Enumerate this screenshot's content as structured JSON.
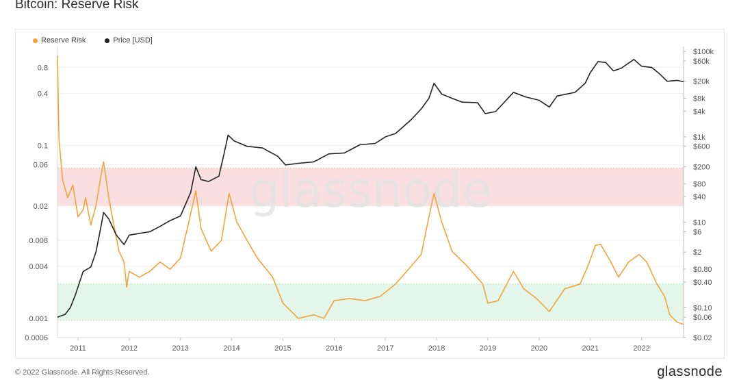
{
  "page_title": "Bitcoin: Reserve Risk",
  "footer": {
    "copyright": "© 2022 Glassnode. All Rights Reserved.",
    "brand": "glassnode"
  },
  "colors": {
    "reserve_risk": "#f2a33a",
    "price": "#222222",
    "red_band": "#f9d9da",
    "green_band": "#dff5e6",
    "watermark": "#e3e3e3"
  },
  "watermark": "glassnode",
  "chart_data": {
    "type": "line",
    "title": "Bitcoin: Reserve Risk",
    "legend": [
      "Reserve Risk",
      "Price [USD]"
    ],
    "legend_position": "top-left",
    "x_ticks": [
      "2011",
      "2012",
      "2013",
      "2014",
      "2015",
      "2016",
      "2017",
      "2018",
      "2019",
      "2020",
      "2021",
      "2022"
    ],
    "x_range": [
      2010.6,
      2022.82
    ],
    "left_axis": {
      "scale": "log",
      "range": [
        0.0006,
        1.4
      ],
      "ticks": [
        0.0006,
        0.001,
        0.004,
        0.008,
        0.02,
        0.06,
        0.1,
        0.4,
        0.8
      ],
      "labels": [
        "0.0006",
        "0.001",
        "0.004",
        "0.008",
        "0.02",
        "0.06",
        "0.1",
        "0.4",
        "0.8"
      ]
    },
    "right_axis": {
      "scale": "log",
      "range": [
        0.02,
        130000
      ],
      "ticks": [
        0.02,
        0.06,
        0.1,
        0.4,
        0.8,
        2,
        6,
        10,
        40,
        80,
        200,
        600,
        1000,
        4000,
        8000,
        20000,
        60000,
        100000
      ],
      "labels": [
        "$0.02",
        "$0.06",
        "$0.10",
        "$0.40",
        "$0.80",
        "$2",
        "$6",
        "$10",
        "$40",
        "$80",
        "$200",
        "$600",
        "$1k",
        "$4k",
        "$8k",
        "$20k",
        "$60k",
        "$100k"
      ]
    },
    "bands": [
      {
        "zone": "red",
        "from": 0.02,
        "to": 0.055
      },
      {
        "zone": "green",
        "from": 0.00095,
        "to": 0.0025
      }
    ],
    "grid": true,
    "series": [
      {
        "name": "Reserve Risk",
        "axis": "left",
        "points": [
          [
            2010.6,
            1.1
          ],
          [
            2010.63,
            0.12
          ],
          [
            2010.7,
            0.04
          ],
          [
            2010.8,
            0.025
          ],
          [
            2010.9,
            0.035
          ],
          [
            2011.0,
            0.015
          ],
          [
            2011.1,
            0.018
          ],
          [
            2011.15,
            0.025
          ],
          [
            2011.25,
            0.012
          ],
          [
            2011.35,
            0.02
          ],
          [
            2011.45,
            0.045
          ],
          [
            2011.5,
            0.065
          ],
          [
            2011.6,
            0.025
          ],
          [
            2011.7,
            0.012
          ],
          [
            2011.8,
            0.006
          ],
          [
            2011.9,
            0.0045
          ],
          [
            2011.95,
            0.0023
          ],
          [
            2012.0,
            0.0035
          ],
          [
            2012.2,
            0.003
          ],
          [
            2012.4,
            0.0035
          ],
          [
            2012.6,
            0.0045
          ],
          [
            2012.8,
            0.0037
          ],
          [
            2013.0,
            0.005
          ],
          [
            2013.15,
            0.012
          ],
          [
            2013.3,
            0.03
          ],
          [
            2013.4,
            0.011
          ],
          [
            2013.6,
            0.006
          ],
          [
            2013.8,
            0.008
          ],
          [
            2013.95,
            0.028
          ],
          [
            2014.1,
            0.013
          ],
          [
            2014.3,
            0.008
          ],
          [
            2014.5,
            0.005
          ],
          [
            2014.8,
            0.003
          ],
          [
            2015.0,
            0.0015
          ],
          [
            2015.3,
            0.001
          ],
          [
            2015.6,
            0.0011
          ],
          [
            2015.8,
            0.001
          ],
          [
            2016.0,
            0.0016
          ],
          [
            2016.3,
            0.0017
          ],
          [
            2016.6,
            0.0016
          ],
          [
            2016.9,
            0.0018
          ],
          [
            2017.2,
            0.0025
          ],
          [
            2017.5,
            0.004
          ],
          [
            2017.7,
            0.0055
          ],
          [
            2017.85,
            0.015
          ],
          [
            2017.95,
            0.028
          ],
          [
            2018.1,
            0.013
          ],
          [
            2018.3,
            0.006
          ],
          [
            2018.6,
            0.004
          ],
          [
            2018.9,
            0.0025
          ],
          [
            2019.0,
            0.0015
          ],
          [
            2019.2,
            0.0016
          ],
          [
            2019.5,
            0.0035
          ],
          [
            2019.7,
            0.0022
          ],
          [
            2019.95,
            0.0017
          ],
          [
            2020.2,
            0.0012
          ],
          [
            2020.5,
            0.0022
          ],
          [
            2020.8,
            0.0025
          ],
          [
            2020.95,
            0.004
          ],
          [
            2021.1,
            0.007
          ],
          [
            2021.2,
            0.0072
          ],
          [
            2021.4,
            0.0045
          ],
          [
            2021.55,
            0.003
          ],
          [
            2021.75,
            0.0045
          ],
          [
            2021.95,
            0.0055
          ],
          [
            2022.1,
            0.0045
          ],
          [
            2022.3,
            0.0025
          ],
          [
            2022.45,
            0.0018
          ],
          [
            2022.55,
            0.0011
          ],
          [
            2022.7,
            0.0009
          ],
          [
            2022.82,
            0.00085
          ]
        ]
      },
      {
        "name": "Price [USD]",
        "axis": "right",
        "points": [
          [
            2010.6,
            0.06
          ],
          [
            2010.75,
            0.07
          ],
          [
            2010.85,
            0.1
          ],
          [
            2010.95,
            0.2
          ],
          [
            2011.1,
            0.7
          ],
          [
            2011.25,
            0.9
          ],
          [
            2011.35,
            2
          ],
          [
            2011.45,
            8
          ],
          [
            2011.5,
            17
          ],
          [
            2011.6,
            12
          ],
          [
            2011.75,
            5
          ],
          [
            2011.9,
            3
          ],
          [
            2012.0,
            5
          ],
          [
            2012.2,
            5.5
          ],
          [
            2012.4,
            6
          ],
          [
            2012.6,
            8
          ],
          [
            2012.8,
            11
          ],
          [
            2013.0,
            14
          ],
          [
            2013.2,
            50
          ],
          [
            2013.3,
            200
          ],
          [
            2013.4,
            100
          ],
          [
            2013.55,
            90
          ],
          [
            2013.75,
            120
          ],
          [
            2013.85,
            400
          ],
          [
            2013.93,
            1100
          ],
          [
            2014.05,
            800
          ],
          [
            2014.3,
            600
          ],
          [
            2014.6,
            550
          ],
          [
            2014.9,
            350
          ],
          [
            2015.05,
            220
          ],
          [
            2015.3,
            240
          ],
          [
            2015.6,
            260
          ],
          [
            2015.9,
            400
          ],
          [
            2016.2,
            420
          ],
          [
            2016.5,
            650
          ],
          [
            2016.8,
            700
          ],
          [
            2017.0,
            1000
          ],
          [
            2017.2,
            1200
          ],
          [
            2017.5,
            2500
          ],
          [
            2017.7,
            4500
          ],
          [
            2017.85,
            8000
          ],
          [
            2017.95,
            18000
          ],
          [
            2018.1,
            10000
          ],
          [
            2018.3,
            8000
          ],
          [
            2018.5,
            6500
          ],
          [
            2018.8,
            6300
          ],
          [
            2018.95,
            3500
          ],
          [
            2019.15,
            3900
          ],
          [
            2019.5,
            11000
          ],
          [
            2019.75,
            8500
          ],
          [
            2020.0,
            7200
          ],
          [
            2020.2,
            5000
          ],
          [
            2020.35,
            9000
          ],
          [
            2020.7,
            11000
          ],
          [
            2020.9,
            18000
          ],
          [
            2021.0,
            32000
          ],
          [
            2021.15,
            58000
          ],
          [
            2021.3,
            55000
          ],
          [
            2021.45,
            35000
          ],
          [
            2021.6,
            40000
          ],
          [
            2021.85,
            65000
          ],
          [
            2022.0,
            45000
          ],
          [
            2022.2,
            42000
          ],
          [
            2022.35,
            30000
          ],
          [
            2022.5,
            20000
          ],
          [
            2022.7,
            21000
          ],
          [
            2022.82,
            19500
          ]
        ]
      }
    ]
  }
}
